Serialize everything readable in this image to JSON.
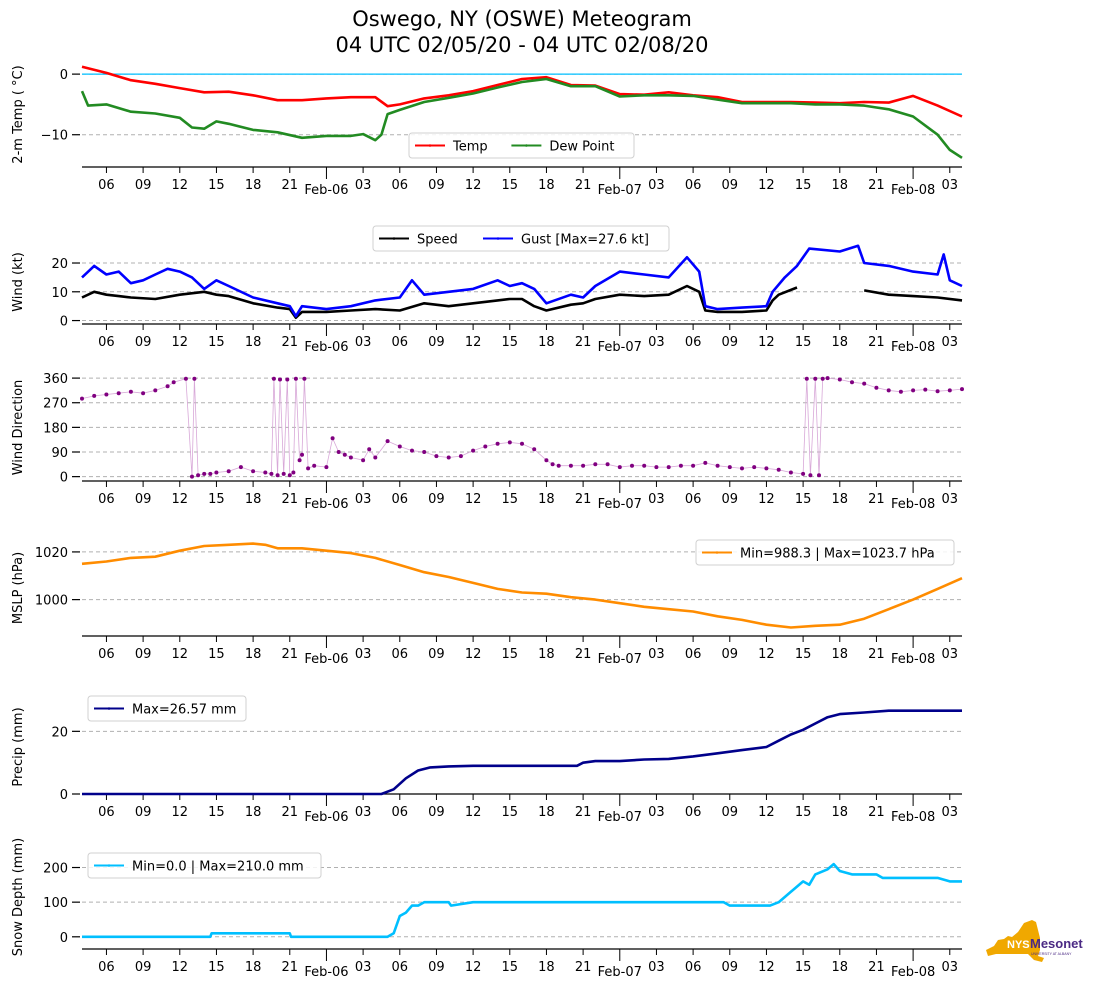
{
  "title": {
    "line1": "Oswego, NY (OSWE) Meteogram",
    "line2": "04 UTC 02/05/20 - 04 UTC 02/08/20"
  },
  "logo": {
    "text_main": "NYS",
    "text_brand": "Mesonet",
    "text_sub": "UNIVERSITY AT ALBANY",
    "state_color": "#f0a800",
    "brand_color": "#4b2a84"
  },
  "time_axis": {
    "start_hour": 0,
    "end_hour": 72,
    "hour_ticks": [
      {
        "h": 2,
        "label": "06"
      },
      {
        "h": 5,
        "label": "09"
      },
      {
        "h": 8,
        "label": "12"
      },
      {
        "h": 11,
        "label": "15"
      },
      {
        "h": 14,
        "label": "18"
      },
      {
        "h": 17,
        "label": "21"
      },
      {
        "h": 23,
        "label": "03"
      },
      {
        "h": 26,
        "label": "06"
      },
      {
        "h": 29,
        "label": "09"
      },
      {
        "h": 32,
        "label": "12"
      },
      {
        "h": 35,
        "label": "15"
      },
      {
        "h": 38,
        "label": "18"
      },
      {
        "h": 41,
        "label": "21"
      },
      {
        "h": 47,
        "label": "03"
      },
      {
        "h": 50,
        "label": "06"
      },
      {
        "h": 53,
        "label": "09"
      },
      {
        "h": 56,
        "label": "12"
      },
      {
        "h": 59,
        "label": "15"
      },
      {
        "h": 62,
        "label": "18"
      },
      {
        "h": 65,
        "label": "21"
      },
      {
        "h": 71,
        "label": "03"
      }
    ],
    "day_ticks": [
      {
        "h": 20,
        "label": "Feb-06"
      },
      {
        "h": 44,
        "label": "Feb-07"
      },
      {
        "h": 68,
        "label": "Feb-08"
      }
    ],
    "note": "hours since 04 UTC 02/05/20"
  },
  "chart_data": [
    {
      "id": "temp",
      "type": "line",
      "ylabel": "2-m Temp ($^\\circ$C)",
      "ylabel_display": "2-m Temp ( °C)",
      "ylim": [
        -14.5,
        2
      ],
      "yticks": [
        0,
        -10
      ],
      "grid": "y-dashed",
      "reference_line": {
        "y": 0,
        "color": "#00bfff"
      },
      "legend": {
        "placement": "lower-center",
        "ncol": 2
      },
      "series": [
        {
          "name": "Temp",
          "color": "#ff0000",
          "x": [
            0,
            2,
            4,
            6,
            8,
            10,
            12,
            14,
            16,
            18,
            20,
            22,
            24,
            25,
            26,
            28,
            30,
            32,
            34,
            36,
            38,
            40,
            42,
            44,
            46,
            48,
            50,
            52,
            54,
            56,
            58,
            60,
            62,
            64,
            66,
            68,
            70,
            72
          ],
          "y": [
            1.2,
            0.2,
            -1.0,
            -1.6,
            -2.3,
            -3.0,
            -2.9,
            -3.5,
            -4.3,
            -4.3,
            -4.0,
            -3.8,
            -3.8,
            -5.3,
            -5.0,
            -4.0,
            -3.5,
            -2.8,
            -1.8,
            -0.8,
            -0.5,
            -1.8,
            -1.9,
            -3.3,
            -3.4,
            -3.0,
            -3.5,
            -3.8,
            -4.6,
            -4.6,
            -4.6,
            -4.7,
            -4.8,
            -4.6,
            -4.7,
            -3.6,
            -5.2,
            -7.0
          ]
        },
        {
          "name": "Dew Point",
          "color": "#228b22",
          "x": [
            0,
            0.5,
            2,
            4,
            6,
            8,
            9,
            10,
            11,
            12,
            14,
            16,
            18,
            20,
            22,
            23,
            24,
            24.5,
            25,
            26,
            28,
            30,
            32,
            34,
            36,
            38,
            40,
            42,
            44,
            46,
            48,
            50,
            52,
            54,
            56,
            58,
            60,
            62,
            64,
            65,
            66,
            68,
            70,
            71,
            72
          ],
          "y": [
            -2.8,
            -5.2,
            -5.0,
            -6.2,
            -6.5,
            -7.2,
            -8.8,
            -9.0,
            -7.8,
            -8.2,
            -9.2,
            -9.6,
            -10.5,
            -10.2,
            -10.2,
            -9.9,
            -10.9,
            -10.0,
            -6.6,
            -5.9,
            -4.6,
            -3.9,
            -3.2,
            -2.2,
            -1.3,
            -0.8,
            -2.0,
            -2.0,
            -3.7,
            -3.5,
            -3.5,
            -3.6,
            -4.2,
            -4.8,
            -4.8,
            -4.8,
            -5.0,
            -5.0,
            -5.2,
            -5.5,
            -5.8,
            -7.0,
            -10.0,
            -12.5,
            -13.8
          ]
        }
      ]
    },
    {
      "id": "wind",
      "type": "line",
      "ylabel": "Wind (kt)",
      "ylim": [
        -0.5,
        28
      ],
      "yticks": [
        0,
        10,
        20
      ],
      "grid": "y-dashed",
      "legend": {
        "placement": "top-center",
        "ncol": 2
      },
      "series": [
        {
          "name": "Speed",
          "color": "#000000",
          "x": [
            0,
            1,
            2,
            3,
            4,
            6,
            8,
            10,
            11,
            12,
            14,
            16,
            17,
            17.5,
            18,
            20,
            22,
            24,
            26,
            28,
            30,
            32,
            34,
            35,
            36,
            37,
            38,
            40,
            41,
            42,
            44,
            46,
            48,
            49.5,
            50.5,
            51,
            52,
            54,
            56,
            56.5,
            57,
            58.5,
            null,
            64,
            66,
            68,
            70,
            72
          ],
          "y": [
            8,
            10,
            9,
            8.5,
            8,
            7.5,
            9,
            10,
            9,
            8.5,
            6,
            4.5,
            4,
            1,
            3,
            3,
            3.5,
            4,
            3.5,
            6,
            5,
            6,
            7,
            7.5,
            7.5,
            5,
            3.5,
            5.5,
            6,
            7.5,
            9,
            8.5,
            9,
            12,
            10,
            3.5,
            3,
            3,
            3.5,
            7,
            9,
            11.5,
            null,
            10.5,
            9,
            8.5,
            8,
            7
          ]
        },
        {
          "name": "Gust [Max=27.6 kt]",
          "color": "#0000ff",
          "x": [
            0,
            1,
            2,
            3,
            4,
            5,
            6,
            7,
            8,
            9,
            10,
            11,
            12,
            14,
            16,
            17,
            17.5,
            18,
            20,
            22,
            24,
            26,
            27,
            28,
            30,
            32,
            34,
            35,
            36,
            37,
            38,
            40,
            41,
            42,
            44,
            46,
            48,
            49.5,
            50.5,
            51,
            52,
            54,
            56,
            56.5,
            57.5,
            58.5,
            59.5,
            62,
            63.5,
            64,
            66,
            68,
            70,
            70.5,
            71,
            72
          ],
          "y": [
            15,
            19,
            16,
            17,
            13,
            14,
            16,
            18,
            17,
            15,
            11,
            14,
            12,
            8,
            6,
            5,
            1.5,
            5,
            4,
            5,
            7,
            8,
            14,
            9,
            10,
            11,
            14,
            12,
            13,
            11,
            6,
            9,
            8,
            12,
            17,
            16,
            15,
            22,
            17,
            5,
            4,
            4.5,
            5,
            10,
            15,
            19,
            25,
            24,
            26,
            20,
            19,
            17,
            16,
            23,
            14,
            12
          ]
        }
      ]
    },
    {
      "id": "wind_direction",
      "type": "scatter",
      "ylabel": "Wind Direction",
      "ylim": [
        -5,
        375
      ],
      "yticks": [
        0,
        90,
        180,
        270,
        360
      ],
      "grid": "y-dashed",
      "connector_color": "#d8a8d8",
      "series": [
        {
          "name": "Wind Direction",
          "color": "#800080",
          "x": [
            0,
            1,
            2,
            3,
            4,
            5,
            6,
            7,
            7.5,
            8.5,
            9,
            9.2,
            9.5,
            10,
            10.5,
            11,
            12,
            13,
            14,
            15,
            15.5,
            15.7,
            16,
            16.2,
            16.5,
            16.8,
            17,
            17.3,
            17.5,
            17.8,
            18,
            18.2,
            18.5,
            19,
            20,
            20.5,
            21,
            21.5,
            22,
            23,
            23.5,
            24,
            25,
            26,
            27,
            28,
            29,
            30,
            31,
            32,
            33,
            34,
            35,
            36,
            37,
            38,
            38.5,
            39,
            40,
            41,
            42,
            43,
            44,
            45,
            46,
            47,
            48,
            49,
            50,
            51,
            52,
            53,
            54,
            55,
            56,
            57,
            58,
            59,
            59.3,
            59.6,
            60,
            60.3,
            60.6,
            61,
            62,
            63,
            64,
            65,
            66,
            67,
            68,
            69,
            70,
            71,
            72
          ],
          "y": [
            285,
            295,
            300,
            305,
            310,
            305,
            315,
            330,
            345,
            358,
            0,
            358,
            5,
            10,
            10,
            15,
            20,
            35,
            20,
            15,
            10,
            358,
            5,
            355,
            10,
            355,
            5,
            15,
            358,
            60,
            80,
            358,
            30,
            40,
            35,
            140,
            90,
            80,
            70,
            60,
            100,
            70,
            130,
            110,
            95,
            90,
            75,
            70,
            75,
            95,
            110,
            120,
            125,
            120,
            100,
            60,
            45,
            40,
            40,
            40,
            45,
            45,
            35,
            40,
            40,
            35,
            35,
            40,
            40,
            50,
            40,
            35,
            30,
            35,
            30,
            25,
            15,
            10,
            358,
            5,
            358,
            5,
            358,
            360,
            355,
            345,
            340,
            325,
            315,
            310,
            315,
            318,
            312,
            315,
            320
          ]
        }
      ]
    },
    {
      "id": "mslp",
      "type": "line",
      "ylabel": "MSLP (hPa)",
      "ylim": [
        986,
        1025
      ],
      "yticks": [
        1000,
        1020
      ],
      "grid": "y-dashed",
      "legend": {
        "placement": "upper-right",
        "label": "Min=988.3 | Max=1023.7 hPa"
      },
      "series": [
        {
          "name": "Min=988.3 | Max=1023.7 hPa",
          "color": "#ff8c00",
          "x": [
            0,
            2,
            4,
            6,
            8,
            10,
            12,
            14,
            15,
            16,
            18,
            20,
            22,
            24,
            26,
            28,
            30,
            32,
            34,
            36,
            38,
            40,
            42,
            44,
            46,
            48,
            50,
            52,
            54,
            56,
            58,
            60,
            62,
            64,
            66,
            68,
            70,
            72
          ],
          "y": [
            1015,
            1016,
            1017.5,
            1018,
            1020.5,
            1022.5,
            1023,
            1023.5,
            1023,
            1021.5,
            1021.5,
            1020.5,
            1019.5,
            1017.5,
            1014.5,
            1011.5,
            1009.5,
            1007,
            1004.5,
            1003,
            1002.5,
            1001,
            1000,
            998.5,
            997,
            996,
            995,
            993,
            991.5,
            989.5,
            988.3,
            989,
            989.5,
            992,
            996,
            1000,
            1004.5,
            1009
          ]
        }
      ]
    },
    {
      "id": "precip",
      "type": "line",
      "ylabel": "Precip (mm)",
      "ylim": [
        0,
        30
      ],
      "yticks": [
        0,
        20
      ],
      "grid": "y-dashed",
      "legend": {
        "placement": "upper-left",
        "label": "Max=26.57 mm"
      },
      "series": [
        {
          "name": "Max=26.57 mm",
          "color": "#00008b",
          "x": [
            0,
            24.5,
            25.5,
            26.5,
            27.5,
            28.5,
            30,
            32,
            38,
            40.5,
            41,
            42,
            44,
            46,
            48,
            50,
            52,
            54,
            56,
            57,
            58,
            59,
            60,
            61,
            62,
            64,
            66,
            68,
            72
          ],
          "y": [
            0,
            0,
            1.5,
            5,
            7.5,
            8.5,
            8.8,
            9,
            9,
            9,
            10,
            10.5,
            10.5,
            11,
            11.2,
            12,
            13,
            14,
            15,
            17,
            19,
            20.5,
            22.5,
            24.5,
            25.5,
            26,
            26.57,
            26.57,
            26.57
          ]
        }
      ]
    },
    {
      "id": "snow_depth",
      "type": "line",
      "ylabel": "Snow Depth (mm)",
      "ylim": [
        -15,
        265
      ],
      "yticks": [
        0,
        100,
        200
      ],
      "grid": "y-dashed",
      "legend": {
        "placement": "upper-left",
        "label": "Min=0.0 | Max=210.0 mm"
      },
      "series": [
        {
          "name": "Min=0.0 | Max=210.0 mm",
          "color": "#00bfff",
          "x": [
            0,
            10.5,
            10.6,
            17,
            17.1,
            25,
            25.5,
            26,
            26.5,
            27,
            27.5,
            28,
            28.5,
            30,
            30.2,
            32,
            40,
            47.5,
            48,
            52.5,
            53,
            56.3,
            57,
            58,
            59,
            59.5,
            60,
            61,
            61.5,
            62,
            63,
            65,
            65.5,
            66,
            70,
            71,
            72
          ],
          "y": [
            0,
            0,
            10,
            10,
            0,
            0,
            10,
            60,
            70,
            90,
            90,
            100,
            100,
            100,
            90,
            100,
            100,
            100,
            100,
            100,
            90,
            90,
            100,
            130,
            160,
            150,
            180,
            195,
            210,
            190,
            180,
            180,
            170,
            170,
            170,
            160,
            160
          ]
        }
      ]
    }
  ]
}
